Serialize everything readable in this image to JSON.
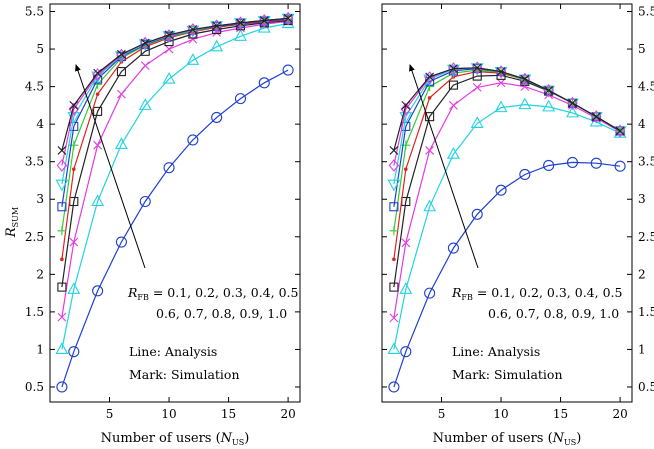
{
  "chart_data": [
    {
      "type": "line",
      "panel": "left",
      "xlabel": "Number of users (N_US)",
      "xlabel_parts": {
        "main": "Number of users (",
        "var": "N",
        "sub": "US",
        "tail": ")"
      },
      "ylabel_parts": {
        "var": "R",
        "sub": "SUM"
      },
      "xlim": [
        0,
        21
      ],
      "ylim": [
        0.3,
        5.6
      ],
      "xticks": [
        5,
        10,
        15,
        20
      ],
      "yticks": [
        0.5,
        1,
        1.5,
        2,
        2.5,
        3,
        3.5,
        4,
        4.5,
        5,
        5.5
      ],
      "x": [
        1,
        2,
        4,
        6,
        8,
        10,
        12,
        14,
        16,
        18,
        20
      ],
      "series": [
        {
          "color": "#1f3fcf",
          "marker": "circle",
          "values": [
            0.5,
            0.97,
            1.78,
            2.43,
            2.97,
            3.42,
            3.79,
            4.09,
            4.34,
            4.55,
            4.72
          ]
        },
        {
          "color": "#22d3e0",
          "marker": "triangle-up",
          "values": [
            1.0,
            1.8,
            2.97,
            3.73,
            4.25,
            4.6,
            4.85,
            5.03,
            5.17,
            5.28,
            5.34
          ]
        },
        {
          "color": "#e23ce0",
          "marker": "x",
          "values": [
            1.43,
            2.43,
            3.72,
            4.4,
            4.78,
            5.0,
            5.13,
            5.22,
            5.28,
            5.33,
            5.37
          ]
        },
        {
          "color": "#222222",
          "marker": "square",
          "values": [
            1.83,
            2.97,
            4.17,
            4.7,
            4.97,
            5.1,
            5.2,
            5.26,
            5.31,
            5.35,
            5.38
          ]
        },
        {
          "color": "#e0221f",
          "marker": "dot",
          "values": [
            2.2,
            3.4,
            4.4,
            4.83,
            5.03,
            5.15,
            5.23,
            5.29,
            5.33,
            5.36,
            5.39
          ]
        },
        {
          "color": "#33cc33",
          "marker": "plus",
          "values": [
            2.58,
            3.72,
            4.53,
            4.88,
            5.05,
            5.16,
            5.24,
            5.3,
            5.34,
            5.37,
            5.4
          ]
        },
        {
          "color": "#1f3fcf",
          "marker": "square",
          "values": [
            2.9,
            3.97,
            4.6,
            4.9,
            5.06,
            5.17,
            5.25,
            5.3,
            5.34,
            5.37,
            5.4
          ]
        },
        {
          "color": "#22d3e0",
          "marker": "triangle-down",
          "values": [
            3.2,
            4.1,
            4.64,
            4.91,
            5.07,
            5.18,
            5.25,
            5.31,
            5.35,
            5.38,
            5.41
          ]
        },
        {
          "color": "#e23ce0",
          "marker": "diamond",
          "values": [
            3.45,
            4.2,
            4.66,
            4.92,
            5.08,
            5.18,
            5.26,
            5.31,
            5.35,
            5.38,
            5.41
          ]
        },
        {
          "color": "#222222",
          "marker": "x",
          "values": [
            3.65,
            4.25,
            4.68,
            4.93,
            5.08,
            5.19,
            5.26,
            5.31,
            5.35,
            5.38,
            5.41
          ]
        }
      ],
      "annotation": {
        "rfb_var": "R",
        "rfb_sub": "FB",
        "rfb_line1": " = 0.1, 0.2, 0.3, 0.4, 0.5",
        "rfb_line2": "0.6, 0.7, 0.8, 0.9, 1.0",
        "line_legend": "Line: Analysis",
        "mark_legend": "Mark: Simulation"
      }
    },
    {
      "type": "line",
      "panel": "right",
      "xlabel": "Number of users (N_US)",
      "xlabel_parts": {
        "main": "Number of users (",
        "var": "N",
        "sub": "US",
        "tail": ")"
      },
      "xlim": [
        0,
        21
      ],
      "ylim": [
        0.3,
        5.6
      ],
      "xticks": [
        5,
        10,
        15,
        20
      ],
      "yticks": [
        0.5,
        1,
        1.5,
        2,
        2.5,
        3,
        3.5,
        4,
        4.5,
        5,
        5.5
      ],
      "x": [
        1,
        2,
        4,
        6,
        8,
        10,
        12,
        14,
        16,
        18,
        20
      ],
      "series": [
        {
          "color": "#1f3fcf",
          "marker": "circle",
          "values": [
            0.5,
            0.97,
            1.75,
            2.35,
            2.8,
            3.12,
            3.33,
            3.45,
            3.49,
            3.48,
            3.44
          ]
        },
        {
          "color": "#22d3e0",
          "marker": "triangle-up",
          "values": [
            1.0,
            1.8,
            2.9,
            3.6,
            4.01,
            4.22,
            4.26,
            4.23,
            4.15,
            4.03,
            3.88
          ]
        },
        {
          "color": "#e23ce0",
          "marker": "x",
          "values": [
            1.42,
            2.42,
            3.65,
            4.25,
            4.49,
            4.55,
            4.5,
            4.39,
            4.25,
            4.08,
            3.9
          ]
        },
        {
          "color": "#222222",
          "marker": "square",
          "values": [
            1.83,
            2.97,
            4.1,
            4.52,
            4.64,
            4.65,
            4.57,
            4.44,
            4.28,
            4.1,
            3.91
          ]
        },
        {
          "color": "#e0221f",
          "marker": "dot",
          "values": [
            2.2,
            3.4,
            4.35,
            4.63,
            4.7,
            4.68,
            4.59,
            4.45,
            4.28,
            4.1,
            3.91
          ]
        },
        {
          "color": "#33cc33",
          "marker": "plus",
          "values": [
            2.58,
            3.72,
            4.5,
            4.68,
            4.72,
            4.69,
            4.59,
            4.45,
            4.28,
            4.1,
            3.91
          ]
        },
        {
          "color": "#1f3fcf",
          "marker": "square",
          "values": [
            2.9,
            3.97,
            4.57,
            4.71,
            4.74,
            4.7,
            4.6,
            4.45,
            4.28,
            4.1,
            3.91
          ]
        },
        {
          "color": "#22d3e0",
          "marker": "triangle-down",
          "values": [
            3.2,
            4.1,
            4.6,
            4.73,
            4.75,
            4.7,
            4.6,
            4.45,
            4.28,
            4.1,
            3.91
          ]
        },
        {
          "color": "#e23ce0",
          "marker": "diamond",
          "values": [
            3.45,
            4.2,
            4.62,
            4.74,
            4.75,
            4.7,
            4.6,
            4.45,
            4.28,
            4.1,
            3.91
          ]
        },
        {
          "color": "#222222",
          "marker": "x",
          "values": [
            3.65,
            4.25,
            4.63,
            4.74,
            4.75,
            4.7,
            4.6,
            4.45,
            4.28,
            4.1,
            3.91
          ]
        }
      ],
      "annotation": {
        "rfb_var": "R",
        "rfb_sub": "FB",
        "rfb_line1": " = 0.1, 0.2, 0.3, 0.4, 0.5",
        "rfb_line2": "0.6, 0.7, 0.8, 0.9, 1.0",
        "line_legend": "Line: Analysis",
        "mark_legend": "Mark: Simulation"
      }
    }
  ]
}
